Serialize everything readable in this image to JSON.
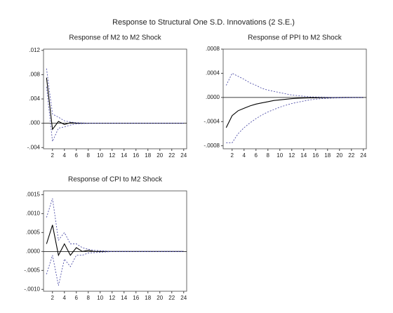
{
  "title": "Response to Structural One S.D. Innovations (2 S.E.)",
  "chart_data": [
    {
      "type": "line",
      "title": "Response of M2 to M2 Shock",
      "x": [
        1,
        2,
        3,
        4,
        5,
        6,
        7,
        8,
        9,
        10,
        11,
        12,
        13,
        14,
        15,
        16,
        17,
        18,
        19,
        20,
        21,
        22,
        23,
        24
      ],
      "xlim": [
        0.5,
        24.5
      ],
      "xticks": [
        2,
        4,
        6,
        8,
        10,
        12,
        14,
        16,
        18,
        20,
        22,
        24
      ],
      "ylim": [
        -0.0042,
        0.0122
      ],
      "yticks": [
        {
          "value": -0.004,
          "label": "-.004"
        },
        {
          "value": 0,
          "label": ".000"
        },
        {
          "value": 0.004,
          "label": ".004"
        },
        {
          "value": 0.008,
          "label": ".008"
        },
        {
          "value": 0.012,
          "label": ".012"
        }
      ],
      "series": [
        {
          "color": "#000000",
          "dash": false,
          "values": [
            0.0075,
            -0.001,
            0.0003,
            -0.0002,
            0.0001,
            0,
            0,
            0,
            0,
            0,
            0,
            0,
            0,
            0,
            0,
            0,
            0,
            0,
            0,
            0,
            0,
            0,
            0,
            0
          ]
        },
        {
          "color": "#5050a8",
          "dash": true,
          "values": [
            0.009,
            0.0015,
            0.001,
            0.0004,
            0.0002,
            0.0001,
            5e-05,
            0,
            0,
            0,
            0,
            0,
            0,
            0,
            0,
            0,
            0,
            0,
            0,
            0,
            0,
            0,
            0,
            0
          ]
        },
        {
          "color": "#5050a8",
          "dash": true,
          "values": [
            0.006,
            -0.003,
            -0.0008,
            -0.0006,
            -0.0003,
            -0.0001,
            -5e-05,
            0,
            0,
            0,
            0,
            0,
            0,
            0,
            0,
            0,
            0,
            0,
            0,
            0,
            0,
            0,
            0,
            0
          ]
        }
      ]
    },
    {
      "type": "line",
      "title": "Response of PPI to M2 Shock",
      "x": [
        1,
        2,
        3,
        4,
        5,
        6,
        7,
        8,
        9,
        10,
        11,
        12,
        13,
        14,
        15,
        16,
        17,
        18,
        19,
        20,
        21,
        22,
        23,
        24
      ],
      "xlim": [
        0.5,
        24.5
      ],
      "xticks": [
        2,
        4,
        6,
        8,
        10,
        12,
        14,
        16,
        18,
        20,
        22,
        24
      ],
      "ylim": [
        -0.00085,
        0.0008
      ],
      "yticks": [
        {
          "value": -0.0008,
          "label": "-.0008"
        },
        {
          "value": -0.0004,
          "label": "-.0004"
        },
        {
          "value": 0,
          "label": ".0000"
        },
        {
          "value": 0.0004,
          "label": ".0004"
        },
        {
          "value": 0.0008,
          "label": ".0008"
        }
      ],
      "series": [
        {
          "color": "#000000",
          "dash": false,
          "values": [
            -0.0005,
            -0.0003,
            -0.00022,
            -0.00018,
            -0.00014,
            -0.00011,
            -9e-05,
            -7e-05,
            -5e-05,
            -4e-05,
            -3e-05,
            -2e-05,
            -1.5e-05,
            -1e-05,
            -8e-06,
            -6e-06,
            -4e-06,
            -3e-06,
            -2e-06,
            -1e-06,
            0,
            0,
            0,
            0
          ]
        },
        {
          "color": "#5050a8",
          "dash": true,
          "values": [
            0.0002,
            0.0004,
            0.00035,
            0.0003,
            0.00024,
            0.0002,
            0.00015,
            0.00012,
            0.0001,
            8e-05,
            6e-05,
            4e-05,
            3e-05,
            2e-05,
            1e-05,
            8e-06,
            6e-06,
            4e-06,
            2e-06,
            1e-06,
            0,
            0,
            0,
            0
          ]
        },
        {
          "color": "#5050a8",
          "dash": true,
          "values": [
            -0.00075,
            -0.00075,
            -0.0006,
            -0.0005,
            -0.00042,
            -0.00035,
            -0.00029,
            -0.00024,
            -0.0002,
            -0.00016,
            -0.00013,
            -0.0001,
            -8e-05,
            -6e-05,
            -4e-05,
            -3e-05,
            -2e-05,
            -1.5e-05,
            -1e-05,
            -8e-06,
            -5e-06,
            -3e-06,
            -2e-06,
            -1e-06
          ]
        }
      ]
    },
    {
      "type": "line",
      "title": "Response of CPI to M2 Shock",
      "x": [
        1,
        2,
        3,
        4,
        5,
        6,
        7,
        8,
        9,
        10,
        11,
        12,
        13,
        14,
        15,
        16,
        17,
        18,
        19,
        20,
        21,
        22,
        23,
        24
      ],
      "xlim": [
        0.5,
        24.5
      ],
      "xticks": [
        2,
        4,
        6,
        8,
        10,
        12,
        14,
        16,
        18,
        20,
        22,
        24
      ],
      "ylim": [
        -0.00105,
        0.0016
      ],
      "yticks": [
        {
          "value": -0.001,
          "label": "-.0010"
        },
        {
          "value": -0.0005,
          "label": "-.0005"
        },
        {
          "value": 0,
          "label": ".0000"
        },
        {
          "value": 0.0005,
          "label": ".0005"
        },
        {
          "value": 0.001,
          "label": ".0010"
        },
        {
          "value": 0.0015,
          "label": ".0015"
        }
      ],
      "series": [
        {
          "color": "#000000",
          "dash": false,
          "values": [
            0.0002,
            0.0007,
            -0.0001,
            0.0002,
            -0.0001,
            0.0001,
            0,
            3e-05,
            0,
            0,
            0,
            0,
            0,
            0,
            0,
            0,
            0,
            0,
            0,
            0,
            0,
            0,
            0,
            0
          ]
        },
        {
          "color": "#5050a8",
          "dash": true,
          "values": [
            0.0009,
            0.0014,
            0.0003,
            0.0005,
            0.0002,
            0.0002,
            0.0001,
            6e-05,
            3e-05,
            2e-05,
            1e-05,
            0,
            0,
            0,
            0,
            0,
            0,
            0,
            0,
            0,
            0,
            0,
            0,
            0
          ]
        },
        {
          "color": "#5050a8",
          "dash": true,
          "values": [
            -0.0006,
            -0.0001,
            -0.0009,
            -0.0002,
            -0.0004,
            -0.0001,
            -0.0001,
            -4e-05,
            -3e-05,
            -2e-05,
            -1e-05,
            0,
            0,
            0,
            0,
            0,
            0,
            0,
            0,
            0,
            0,
            0,
            0,
            0
          ]
        }
      ]
    }
  ]
}
